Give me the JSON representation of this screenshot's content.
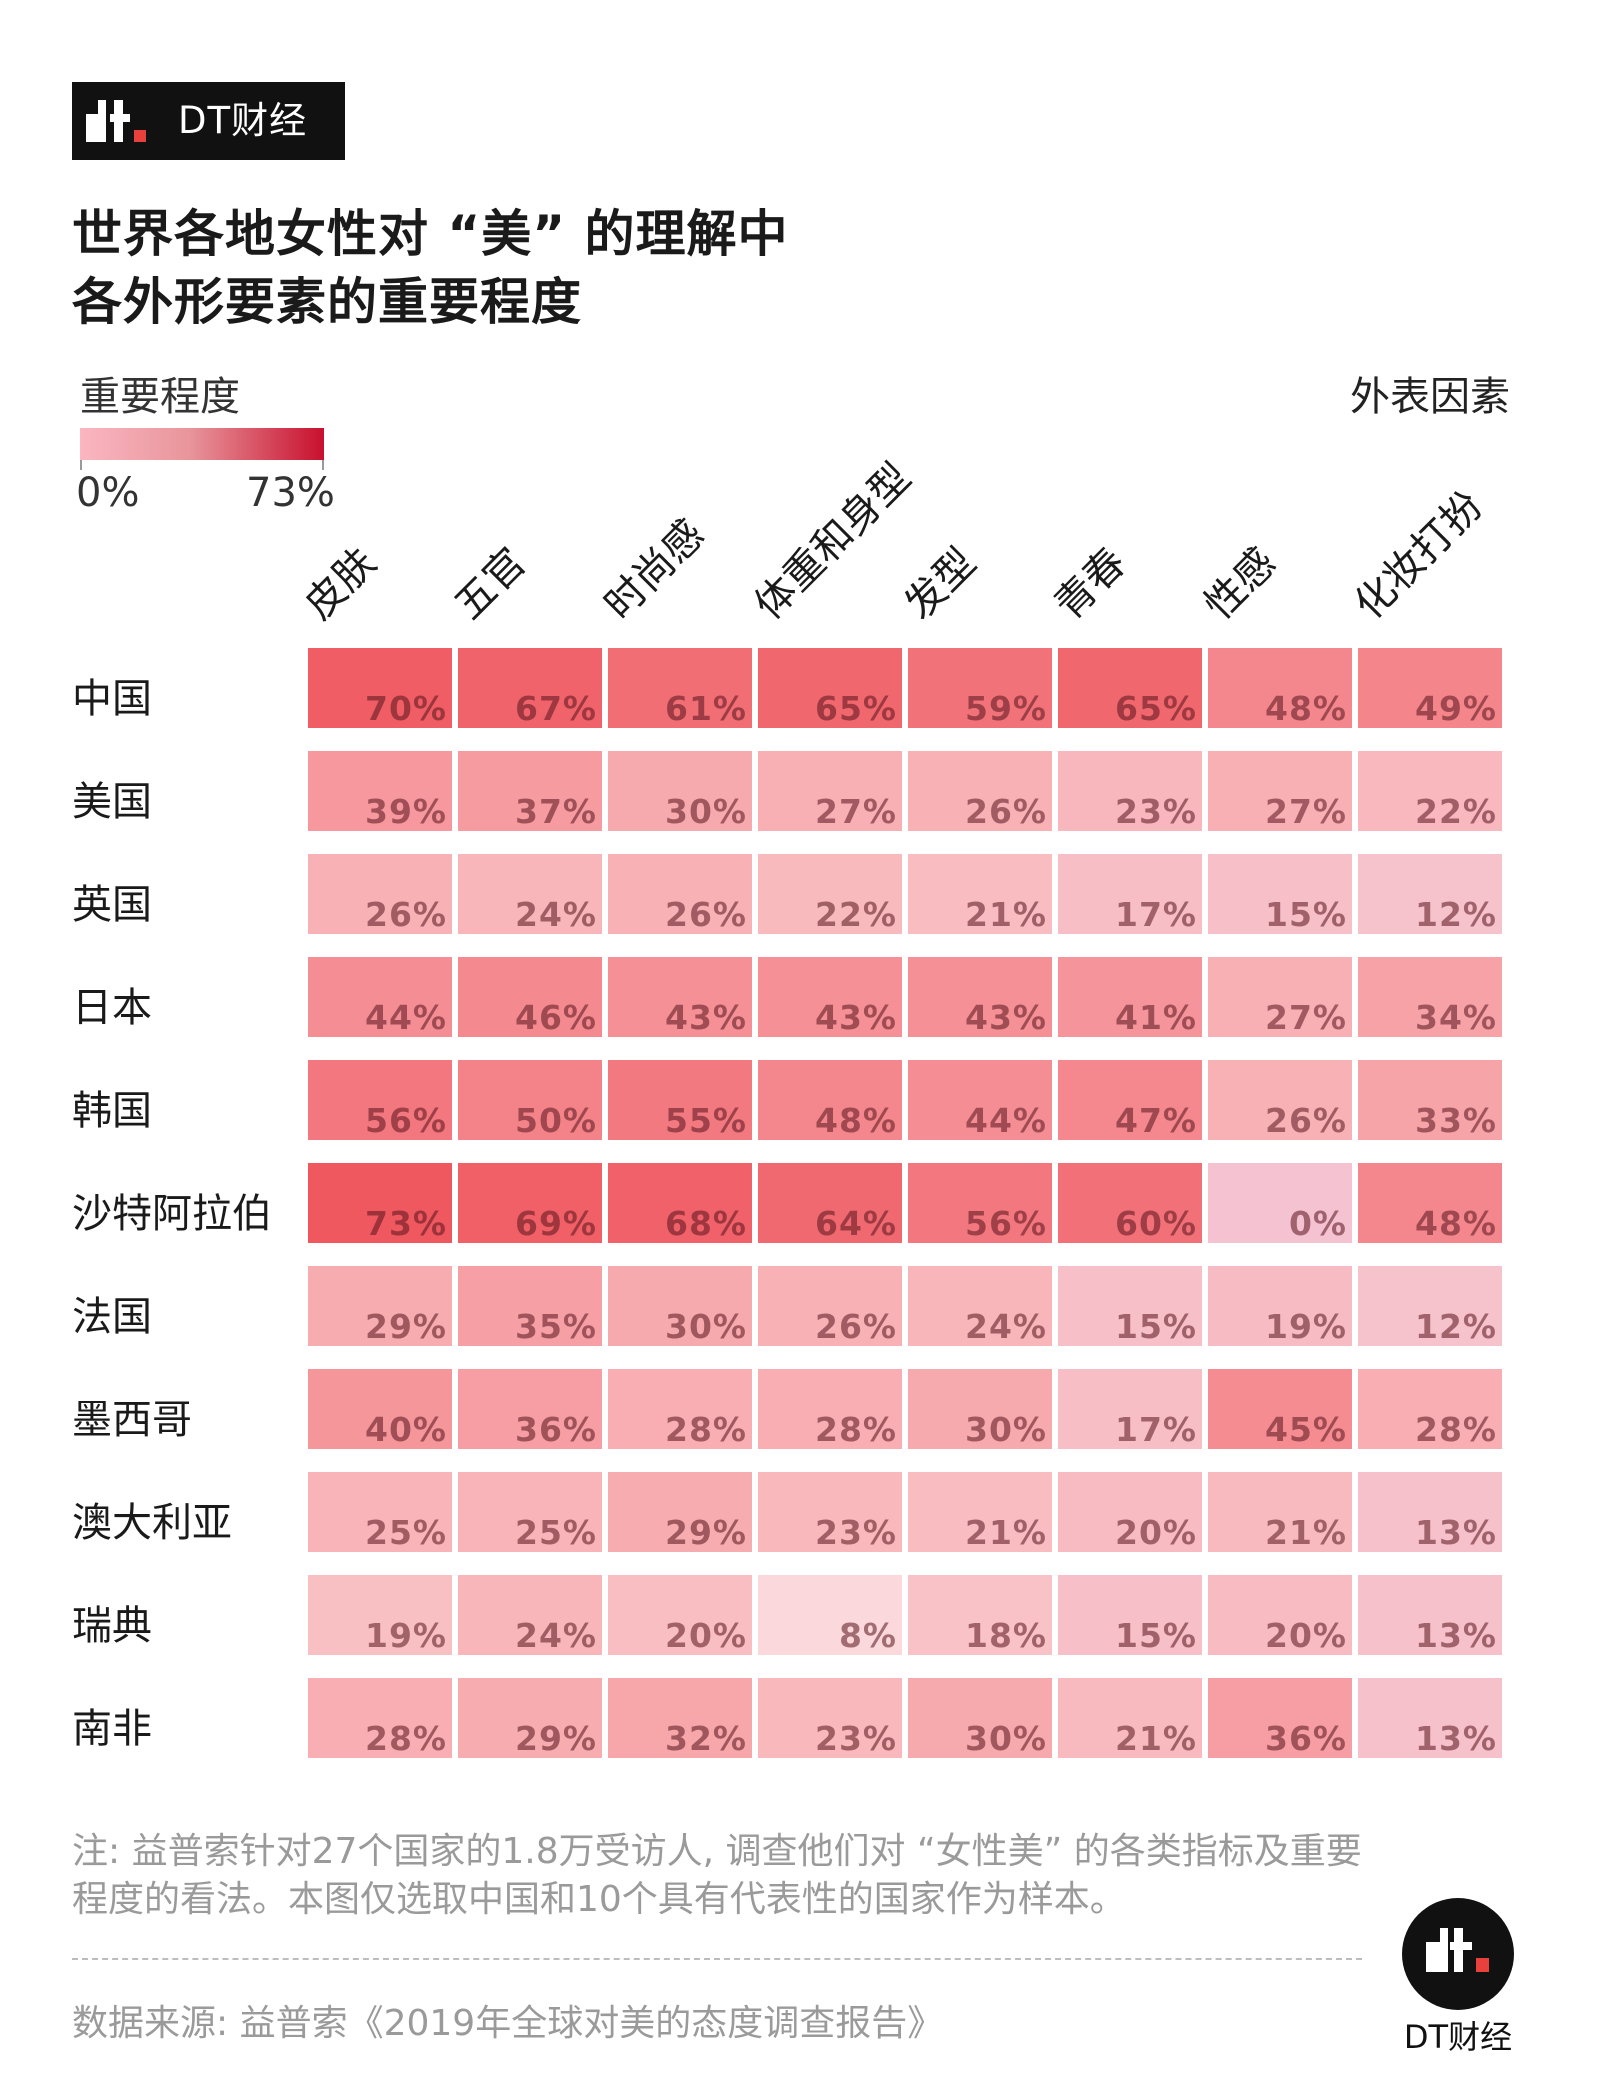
{
  "brand": {
    "name": "DT财经"
  },
  "title": {
    "line1": "世界各地女性对 “美” 的理解中",
    "line2": "各外形要素的重要程度"
  },
  "legend": {
    "label": "重要程度",
    "min_label": "0%",
    "max_label": "73%",
    "min_value": 0,
    "max_value": 73
  },
  "outer_label": "外表因素",
  "colors": {
    "low": "#fbb6c1",
    "high": "#c8102e",
    "text_dark": "#1a1a1a",
    "note": "#9a9a9a"
  },
  "chart_data": {
    "type": "heatmap",
    "title": "世界各地女性对 “美” 的理解中各外形要素的重要程度",
    "columns": [
      "皮肤",
      "五官",
      "时尚感",
      "体重和身型",
      "发型",
      "青春",
      "性感",
      "化妆打扮"
    ],
    "rows": [
      "中国",
      "美国",
      "英国",
      "日本",
      "韩国",
      "沙特阿拉伯",
      "法国",
      "墨西哥",
      "澳大利亚",
      "瑞典",
      "南非"
    ],
    "values": [
      [
        70,
        67,
        61,
        65,
        59,
        65,
        48,
        49
      ],
      [
        39,
        37,
        30,
        27,
        26,
        23,
        27,
        22
      ],
      [
        26,
        24,
        26,
        22,
        21,
        17,
        15,
        12
      ],
      [
        44,
        46,
        43,
        43,
        43,
        41,
        27,
        34
      ],
      [
        56,
        50,
        55,
        48,
        44,
        47,
        26,
        33
      ],
      [
        73,
        69,
        68,
        64,
        56,
        60,
        0,
        48
      ],
      [
        29,
        35,
        30,
        26,
        24,
        15,
        19,
        12
      ],
      [
        40,
        36,
        28,
        28,
        30,
        17,
        45,
        28
      ],
      [
        25,
        25,
        29,
        23,
        21,
        20,
        21,
        13
      ],
      [
        19,
        24,
        20,
        8,
        18,
        15,
        20,
        13
      ],
      [
        28,
        29,
        32,
        23,
        30,
        21,
        36,
        13
      ]
    ],
    "labels": [
      [
        "70%",
        "67%",
        "61%",
        "65%",
        "59%",
        "65%",
        "48%",
        "49%"
      ],
      [
        "39%",
        "37%",
        "30%",
        "27%",
        "26%",
        "23%",
        "27%",
        "22%"
      ],
      [
        "26%",
        "24%",
        "26%",
        "22%",
        "21%",
        "17%",
        "15%",
        "12%"
      ],
      [
        "44%",
        "46%",
        "43%",
        "43%",
        "43%",
        "41%",
        "27%",
        "34%"
      ],
      [
        "56%",
        "50%",
        "55%",
        "48%",
        "44%",
        "47%",
        "26%",
        "33%"
      ],
      [
        "73%",
        "69%",
        "68%",
        "64%",
        "56%",
        "60%",
        "0%",
        "48%"
      ],
      [
        "29%",
        "35%",
        "30%",
        "26%",
        "24%",
        "15%",
        "19%",
        "12%"
      ],
      [
        "40%",
        "36%",
        "28%",
        "28%",
        "30%",
        "17%",
        "45%",
        "28%"
      ],
      [
        "25%",
        "25%",
        "29%",
        "23%",
        "21%",
        "20%",
        "21%",
        "13%"
      ],
      [
        "19%",
        "24%",
        "20%",
        "8%",
        "18%",
        "15%",
        "20%",
        "13%"
      ],
      [
        "28%",
        "29%",
        "32%",
        "23%",
        "30%",
        "21%",
        "36%",
        "13%"
      ]
    ],
    "value_range": [
      0,
      73
    ]
  },
  "note": "注: 益普索针对27个国家的1.8万受访人, 调查他们对 “女性美” 的各类指标及重要程度的看法。本图仅选取中国和10个具有代表性的国家作为样本。",
  "source": "数据来源: 益普索《2019年全球对美的态度调查报告》",
  "footer_brand": "DT财经"
}
